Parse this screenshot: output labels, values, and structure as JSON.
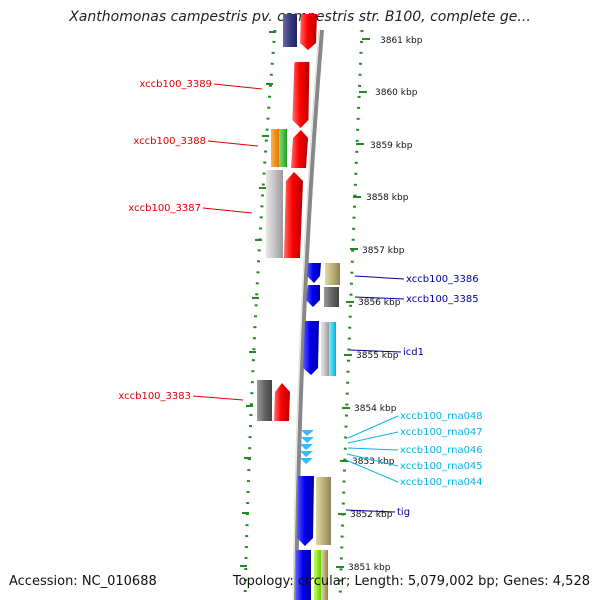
{
  "title": "Xanthomonas campestris pv. campestris str. B100, complete ge...",
  "footer": {
    "accession": "Accession: NC_010688",
    "stats": "Topology: circular; Length: 5,079,002 bp; Genes: 4,528"
  },
  "colors": {
    "forward_gene_label": "#dd0000",
    "reverse_gene_label": "#000099",
    "rna_label": "#00b8e6",
    "tick": "#228b22",
    "backbone": "#888888"
  },
  "scale_labels": [
    "3861 kbp",
    "3860 kbp",
    "3859 kbp",
    "3858 kbp",
    "3857 kbp",
    "3856 kbp",
    "3855 kbp",
    "3854 kbp",
    "3853 kbp",
    "3852 kbp",
    "3851 kbp"
  ],
  "left_labels": [
    "xccb100_3389",
    "xccb100_3388",
    "xccb100_3387",
    "xccb100_3383"
  ],
  "right_labels": [
    "xccb100_3386",
    "xccb100_3385",
    "icd1",
    "tig"
  ],
  "rna_labels": [
    "xccb100_rna048",
    "xccb100_rna047",
    "xccb100_rna046",
    "xccb100_rna045",
    "xccb100_rna044"
  ]
}
